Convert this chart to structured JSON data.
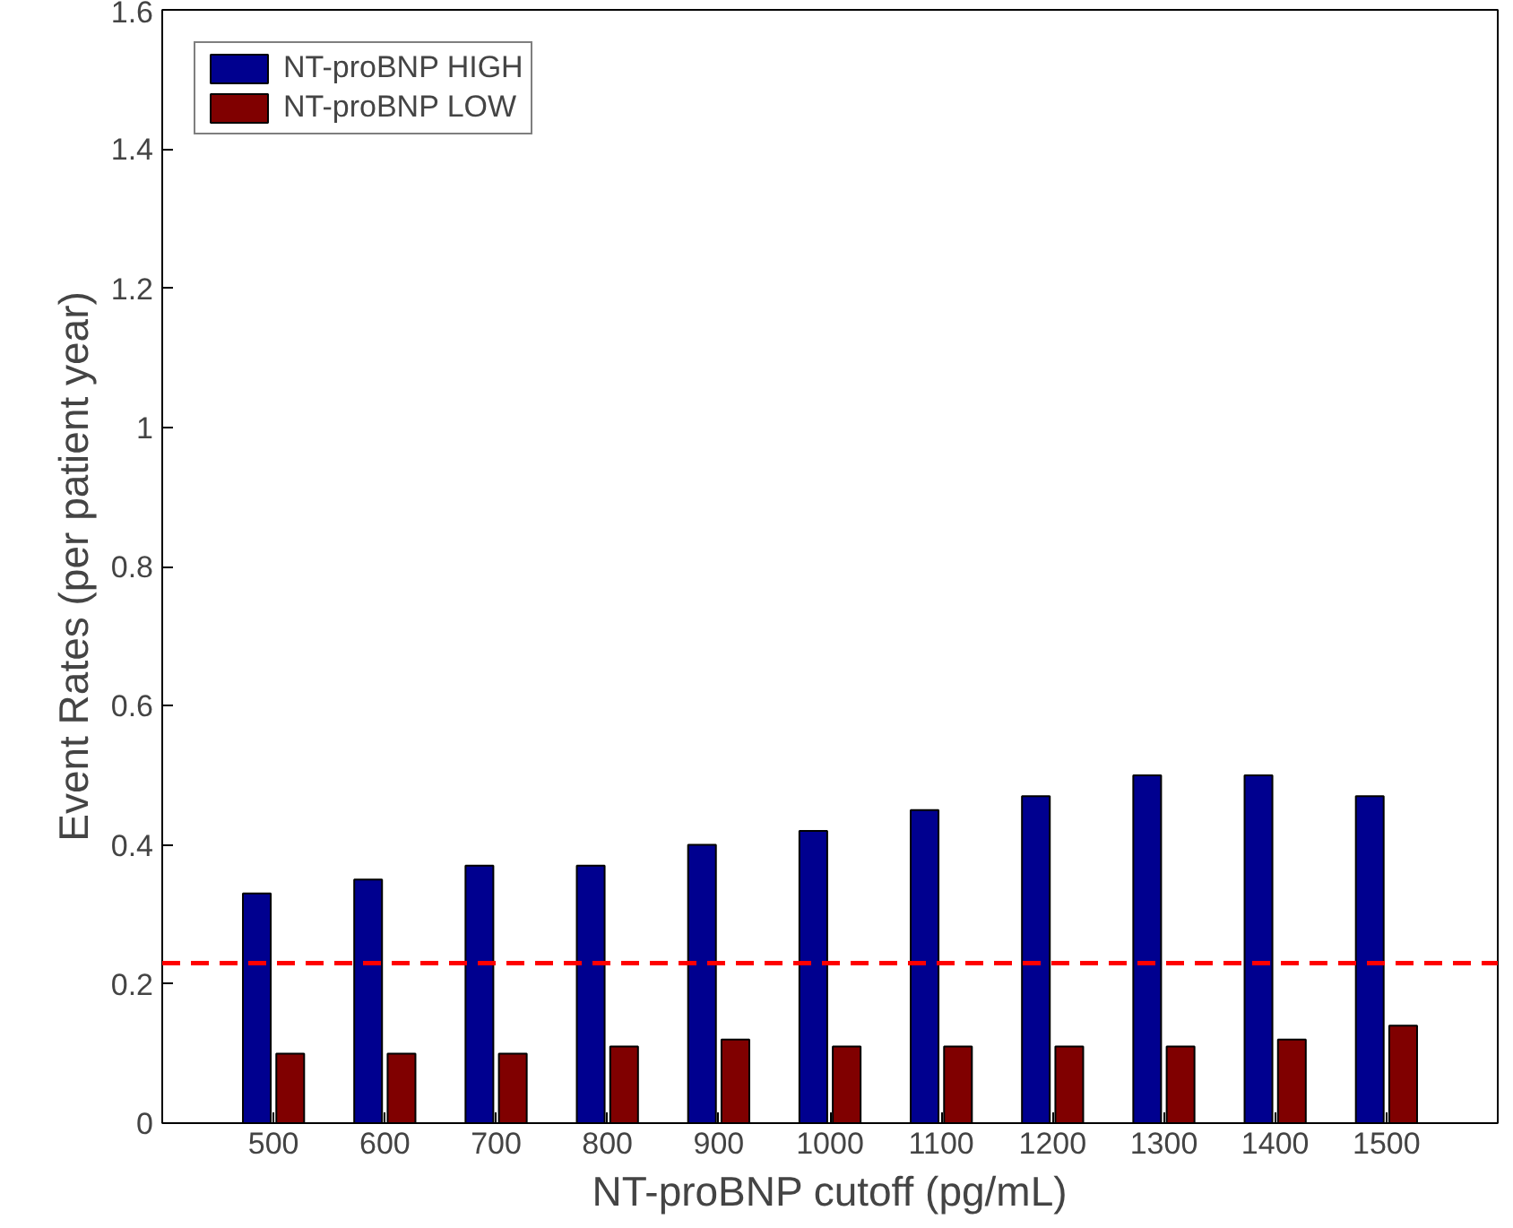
{
  "chart_data": {
    "type": "bar",
    "xlabel": "NT-proBNP cutoff (pg/mL)",
    "ylabel": "Event Rates (per patient year)",
    "categories": [
      "500",
      "600",
      "700",
      "800",
      "900",
      "1000",
      "1100",
      "1200",
      "1300",
      "1400",
      "1500"
    ],
    "series": [
      {
        "name": "NT-proBNP HIGH",
        "color": "#00008f",
        "values": [
          0.33,
          0.35,
          0.37,
          0.37,
          0.4,
          0.42,
          0.45,
          0.47,
          0.5,
          0.5,
          0.47
        ]
      },
      {
        "name": "NT-proBNP LOW",
        "color": "#800000",
        "values": [
          0.1,
          0.1,
          0.1,
          0.11,
          0.12,
          0.11,
          0.11,
          0.11,
          0.11,
          0.12,
          0.14
        ]
      }
    ],
    "ylim": [
      0,
      1.6
    ],
    "yticks": [
      0,
      0.2,
      0.4,
      0.6,
      0.8,
      1,
      1.2,
      1.4,
      1.6
    ],
    "ref_lines": [
      {
        "axis": "y",
        "value": 0.23,
        "color": "#ff0000",
        "line_style": "dashed"
      }
    ],
    "grid": false,
    "legend": "top left"
  }
}
